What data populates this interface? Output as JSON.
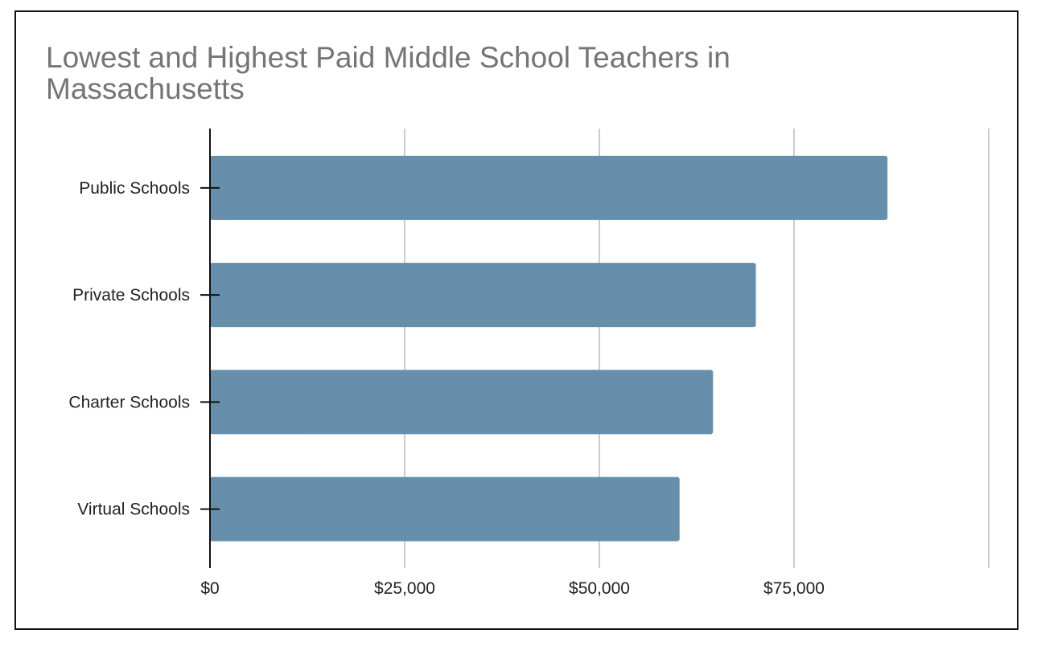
{
  "chart_data": {
    "type": "bar",
    "orientation": "horizontal",
    "title": "Lowest and Highest Paid Middle School Teachers in Massachusetts",
    "categories": [
      "Public Schools",
      "Private Schools",
      "Charter Schools",
      "Virtual Schools"
    ],
    "values": [
      87000,
      70100,
      64600,
      60300
    ],
    "xlabel": "",
    "ylabel": "",
    "xlim": [
      0,
      100000
    ],
    "xticks": [
      0,
      25000,
      50000,
      75000,
      100000
    ],
    "xtick_labels": [
      "$0",
      "$25,000",
      "$50,000",
      "$75,000",
      ""
    ],
    "grid": true,
    "legend": "none",
    "bar_color": "#668fac"
  }
}
